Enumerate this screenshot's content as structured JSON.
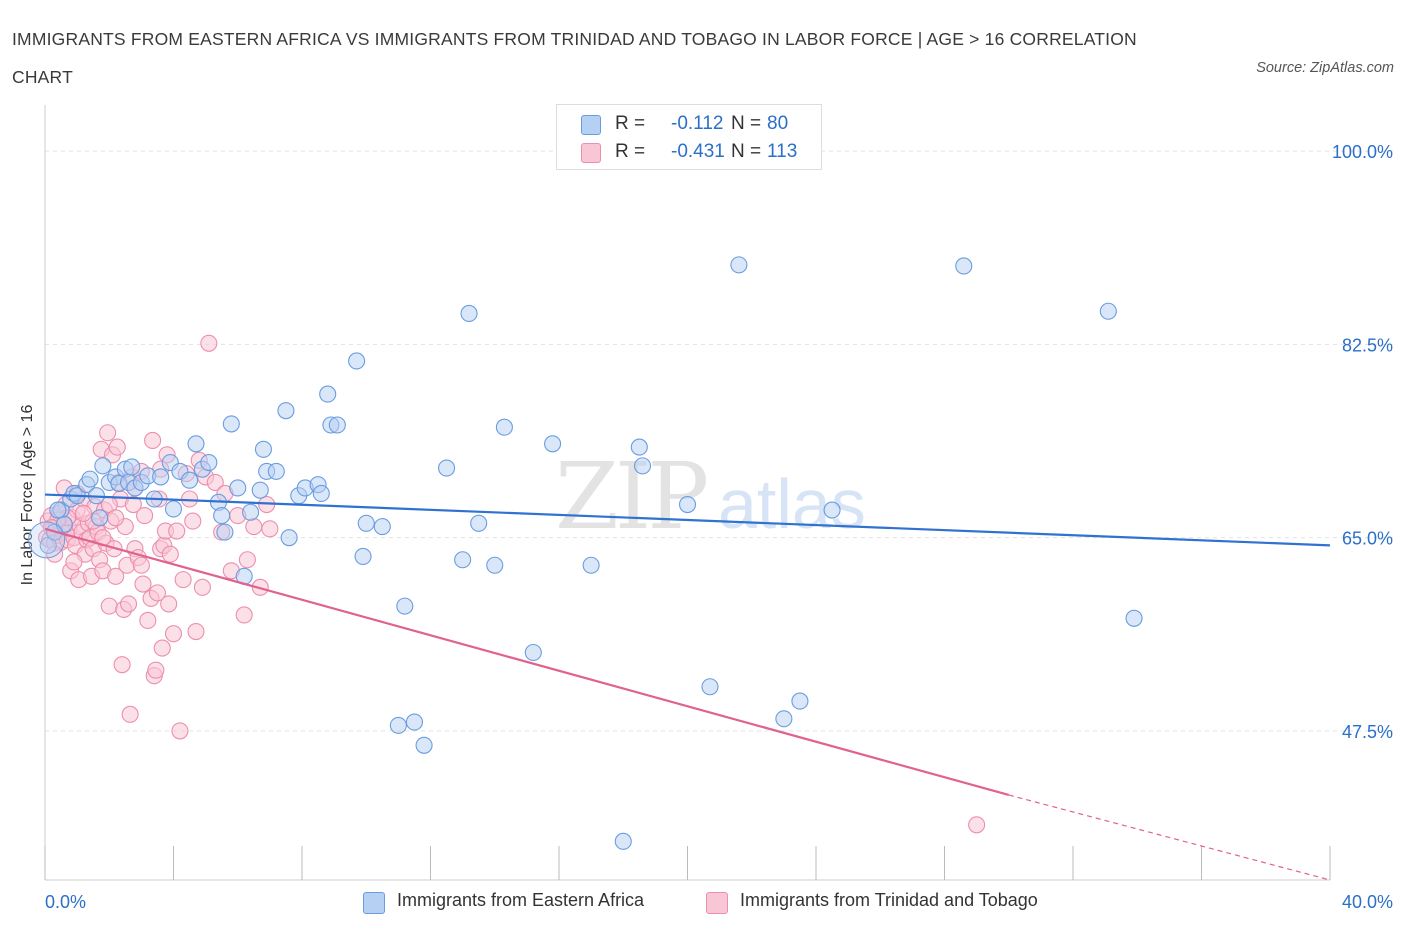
{
  "title": "IMMIGRANTS FROM EASTERN AFRICA VS IMMIGRANTS FROM TRINIDAD AND TOBAGO IN LABOR FORCE | AGE > 16 CORRELATION CHART",
  "source": "Source: ZipAtlas.com",
  "watermark": {
    "zip": "ZIP",
    "atlas": "atlas"
  },
  "legend": {
    "r_label": "R =",
    "n_label": "N =",
    "blue": {
      "r": "-0.112",
      "n": "80"
    },
    "pink": {
      "r": "-0.431",
      "n": "113"
    }
  },
  "colors": {
    "blue_fill": "#b6d0f3",
    "blue_stroke": "#6a9de0",
    "blue_line": "#2f72d1",
    "pink_fill": "#f9c6d6",
    "pink_stroke": "#ec8fae",
    "pink_line": "#e0628f",
    "axis_text": "#2b6fc9",
    "grid": "#e2e2e2"
  },
  "chart_data": {
    "type": "scatter",
    "title": "IMMIGRANTS FROM EASTERN AFRICA VS IMMIGRANTS FROM TRINIDAD AND TOBAGO IN LABOR FORCE | AGE > 16 CORRELATION CHART",
    "xlabel": "",
    "ylabel": "In Labor Force | Age > 16",
    "xlim": [
      0,
      40
    ],
    "ylim": [
      34,
      103
    ],
    "x_tick_labels": [
      "0.0%",
      "40.0%"
    ],
    "y_ticks": [
      47.5,
      65.0,
      82.5,
      100.0
    ],
    "y_tick_labels": [
      "47.5%",
      "65.0%",
      "82.5%",
      "100.0%"
    ],
    "grid": true,
    "legend_position": "top-center",
    "series": [
      {
        "name": "Immigrants from Eastern Africa",
        "color": "#6a9de0",
        "trend": {
          "x": [
            0,
            40
          ],
          "y": [
            68.9,
            64.3
          ]
        },
        "points": [
          [
            0.1,
            64.3
          ],
          [
            0.3,
            65.5
          ],
          [
            0.5,
            67.5
          ],
          [
            0.6,
            66.2
          ],
          [
            0.8,
            68.5
          ],
          [
            0.9,
            69.0
          ],
          [
            1.0,
            68.8
          ],
          [
            1.3,
            69.8
          ],
          [
            1.4,
            70.3
          ],
          [
            1.6,
            68.8
          ],
          [
            1.8,
            71.5
          ],
          [
            2.0,
            70.0
          ],
          [
            2.2,
            70.5
          ],
          [
            2.3,
            69.9
          ],
          [
            2.5,
            71.2
          ],
          [
            2.6,
            70.0
          ],
          [
            2.8,
            69.5
          ],
          [
            3.0,
            70.0
          ],
          [
            3.2,
            70.6
          ],
          [
            3.4,
            68.5
          ],
          [
            3.6,
            70.5
          ],
          [
            3.9,
            71.8
          ],
          [
            4.2,
            71.0
          ],
          [
            4.5,
            70.2
          ],
          [
            4.7,
            73.5
          ],
          [
            4.9,
            71.2
          ],
          [
            5.1,
            71.8
          ],
          [
            5.4,
            68.2
          ],
          [
            5.5,
            67.0
          ],
          [
            5.6,
            65.5
          ],
          [
            5.8,
            75.3
          ],
          [
            6.0,
            69.5
          ],
          [
            6.2,
            61.5
          ],
          [
            6.7,
            69.3
          ],
          [
            6.8,
            73.0
          ],
          [
            6.9,
            71.0
          ],
          [
            7.2,
            71.0
          ],
          [
            7.5,
            76.5
          ],
          [
            7.6,
            65.0
          ],
          [
            7.9,
            68.8
          ],
          [
            8.1,
            69.5
          ],
          [
            8.5,
            69.8
          ],
          [
            8.6,
            69.0
          ],
          [
            8.8,
            78.0
          ],
          [
            8.9,
            75.2
          ],
          [
            9.1,
            75.2
          ],
          [
            9.7,
            81.0
          ],
          [
            9.9,
            63.3
          ],
          [
            10.0,
            66.3
          ],
          [
            10.5,
            66.0
          ],
          [
            11.0,
            48.0
          ],
          [
            11.2,
            58.8
          ],
          [
            11.5,
            48.3
          ],
          [
            11.8,
            46.2
          ],
          [
            12.5,
            71.3
          ],
          [
            13.0,
            63.0
          ],
          [
            13.2,
            85.3
          ],
          [
            13.5,
            66.3
          ],
          [
            14.0,
            62.5
          ],
          [
            14.3,
            75.0
          ],
          [
            15.2,
            54.6
          ],
          [
            15.8,
            73.5
          ],
          [
            17.0,
            62.5
          ],
          [
            18.0,
            37.5
          ],
          [
            18.5,
            73.2
          ],
          [
            18.6,
            71.5
          ],
          [
            20.7,
            51.5
          ],
          [
            21.6,
            89.7
          ],
          [
            23.0,
            48.6
          ],
          [
            23.5,
            50.2
          ],
          [
            28.6,
            89.6
          ],
          [
            33.1,
            85.5
          ],
          [
            33.9,
            57.7
          ],
          [
            24.5,
            67.5
          ],
          [
            20.0,
            68.0
          ],
          [
            1.7,
            66.8
          ],
          [
            0.4,
            67.5
          ],
          [
            2.7,
            71.4
          ],
          [
            4.0,
            67.6
          ],
          [
            6.4,
            67.3
          ]
        ]
      },
      {
        "name": "Immigrants from Trinidad and Tobago",
        "color": "#ec8fae",
        "trend": {
          "x": [
            0,
            30
          ],
          "y": [
            65.8,
            41.7
          ]
        },
        "trend_dashed": {
          "x": [
            30,
            40
          ],
          "y": [
            41.7,
            34.0
          ]
        },
        "points": [
          [
            0.05,
            65.0
          ],
          [
            0.1,
            66.5
          ],
          [
            0.15,
            64.8
          ],
          [
            0.2,
            67.0
          ],
          [
            0.25,
            65.8
          ],
          [
            0.3,
            64.5
          ],
          [
            0.35,
            66.0
          ],
          [
            0.4,
            65.2
          ],
          [
            0.45,
            67.2
          ],
          [
            0.5,
            64.6
          ],
          [
            0.55,
            65.5
          ],
          [
            0.6,
            66.3
          ],
          [
            0.65,
            68.0
          ],
          [
            0.7,
            64.8
          ],
          [
            0.75,
            65.8
          ],
          [
            0.8,
            62.0
          ],
          [
            0.85,
            66.8
          ],
          [
            0.9,
            65.0
          ],
          [
            0.95,
            64.3
          ],
          [
            1.0,
            67.5
          ],
          [
            1.05,
            61.2
          ],
          [
            1.1,
            66.0
          ],
          [
            1.15,
            65.5
          ],
          [
            1.2,
            68.5
          ],
          [
            1.25,
            63.5
          ],
          [
            1.3,
            64.8
          ],
          [
            1.35,
            66.3
          ],
          [
            1.4,
            65.0
          ],
          [
            1.45,
            61.5
          ],
          [
            1.5,
            64.0
          ],
          [
            1.55,
            67.8
          ],
          [
            1.6,
            66.0
          ],
          [
            1.65,
            65.5
          ],
          [
            1.7,
            63.0
          ],
          [
            1.75,
            73.0
          ],
          [
            1.8,
            62.0
          ],
          [
            1.85,
            67.5
          ],
          [
            1.9,
            64.5
          ],
          [
            1.95,
            74.5
          ],
          [
            2.0,
            58.8
          ],
          [
            2.05,
            66.5
          ],
          [
            2.1,
            72.5
          ],
          [
            2.15,
            64.0
          ],
          [
            2.2,
            61.5
          ],
          [
            2.25,
            73.2
          ],
          [
            2.3,
            70.0
          ],
          [
            2.35,
            68.5
          ],
          [
            2.4,
            53.5
          ],
          [
            2.45,
            58.5
          ],
          [
            2.5,
            66.0
          ],
          [
            2.55,
            62.5
          ],
          [
            2.6,
            59.0
          ],
          [
            2.65,
            49.0
          ],
          [
            2.7,
            70.5
          ],
          [
            2.75,
            68.0
          ],
          [
            2.8,
            64.0
          ],
          [
            2.9,
            63.2
          ],
          [
            3.0,
            62.5
          ],
          [
            3.05,
            60.8
          ],
          [
            3.1,
            67.0
          ],
          [
            3.2,
            57.5
          ],
          [
            3.3,
            59.5
          ],
          [
            3.35,
            73.8
          ],
          [
            3.4,
            52.5
          ],
          [
            3.45,
            53.0
          ],
          [
            3.5,
            60.0
          ],
          [
            3.55,
            68.5
          ],
          [
            3.6,
            64.0
          ],
          [
            3.65,
            55.0
          ],
          [
            3.7,
            64.3
          ],
          [
            3.75,
            65.6
          ],
          [
            3.8,
            72.5
          ],
          [
            3.85,
            59.0
          ],
          [
            3.9,
            63.5
          ],
          [
            4.0,
            56.3
          ],
          [
            4.1,
            65.6
          ],
          [
            4.2,
            47.5
          ],
          [
            4.3,
            61.2
          ],
          [
            4.5,
            68.5
          ],
          [
            4.6,
            66.5
          ],
          [
            4.7,
            56.5
          ],
          [
            4.8,
            72.0
          ],
          [
            4.9,
            60.5
          ],
          [
            5.0,
            70.5
          ],
          [
            5.1,
            82.6
          ],
          [
            5.3,
            70.0
          ],
          [
            5.5,
            65.5
          ],
          [
            5.6,
            69.0
          ],
          [
            5.8,
            62.0
          ],
          [
            6.0,
            67.0
          ],
          [
            6.2,
            58.0
          ],
          [
            6.3,
            63.0
          ],
          [
            6.5,
            66.0
          ],
          [
            6.7,
            60.5
          ],
          [
            6.9,
            68.0
          ],
          [
            7.0,
            65.8
          ],
          [
            0.6,
            69.5
          ],
          [
            1.0,
            69.0
          ],
          [
            1.5,
            66.5
          ],
          [
            0.3,
            63.5
          ],
          [
            0.9,
            62.8
          ],
          [
            2.0,
            68.0
          ],
          [
            2.8,
            69.5
          ],
          [
            0.7,
            66.8
          ],
          [
            1.2,
            67.2
          ],
          [
            3.0,
            71.0
          ],
          [
            2.2,
            66.8
          ],
          [
            4.4,
            70.8
          ],
          [
            1.8,
            65.0
          ],
          [
            0.4,
            66.6
          ],
          [
            29.0,
            39.0
          ],
          [
            3.6,
            71.2
          ],
          [
            0.2,
            65.9
          ]
        ]
      }
    ]
  },
  "bottom_legend": {
    "blue_label": "Immigrants from Eastern Africa",
    "pink_label": "Immigrants from Trinidad and Tobago"
  }
}
